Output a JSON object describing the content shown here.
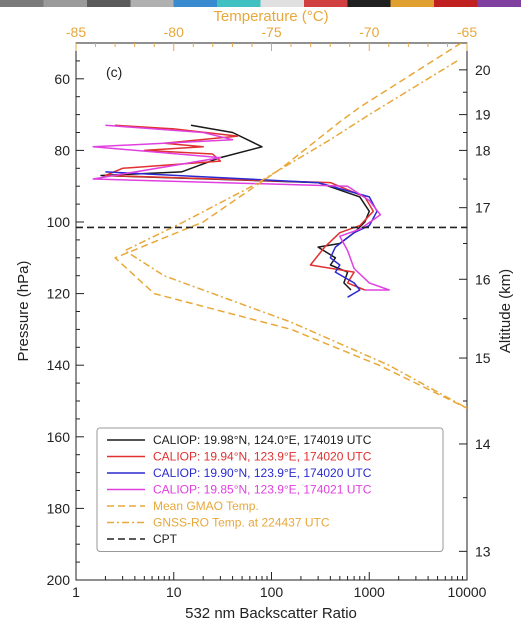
{
  "chart_data": {
    "type": "line",
    "panel_label": "(c)",
    "xlabel": "532 nm Backscatter Ratio",
    "ylabel": "Pressure (hPa)",
    "top_xlabel": "Temperature (°C)",
    "right_ylabel": "Altitude (km)",
    "x_scale": "log",
    "xlim": [
      1,
      10000
    ],
    "x_ticks": [
      "1",
      "10",
      "100",
      "1000",
      "10000"
    ],
    "ylim": [
      50,
      200
    ],
    "y_ticks": [
      "60",
      "80",
      "100",
      "120",
      "140",
      "160",
      "180",
      "200"
    ],
    "top_xlim": [
      -85,
      -65
    ],
    "top_ticks": [
      "-85",
      "-80",
      "-75",
      "-70",
      "-65"
    ],
    "right_ticks": [
      {
        "label": "20",
        "pressure": 57.5
      },
      {
        "label": "19",
        "pressure": 70
      },
      {
        "label": "18",
        "pressure": 80
      },
      {
        "label": "17",
        "pressure": 96
      },
      {
        "label": "16",
        "pressure": 116
      },
      {
        "label": "15",
        "pressure": 138
      },
      {
        "label": "14",
        "pressure": 162
      },
      {
        "label": "13",
        "pressure": 192
      }
    ],
    "legend_position": "bottom-left",
    "series": [
      {
        "name": "CALIOP: 19.98°N, 124.0°E, 174019 UTC",
        "axis": "bottom",
        "color": "#1a1a1a",
        "dash": "solid",
        "points": [
          [
            15,
            73
          ],
          [
            40,
            75
          ],
          [
            80,
            79
          ],
          [
            30,
            82
          ],
          [
            12,
            86
          ],
          [
            1.8,
            87
          ],
          [
            300,
            89
          ],
          [
            800,
            93
          ],
          [
            1000,
            97
          ],
          [
            900,
            100
          ],
          [
            700,
            103
          ],
          [
            500,
            106
          ],
          [
            300,
            107
          ],
          [
            450,
            110
          ],
          [
            400,
            112
          ],
          [
            600,
            114
          ],
          [
            550,
            117
          ],
          [
            650,
            119
          ]
        ]
      },
      {
        "name": "CALIOP: 19.94°N, 123.9°E, 174020 UTC",
        "axis": "bottom",
        "color": "#e03030",
        "dash": "solid",
        "points": [
          [
            2.5,
            73
          ],
          [
            10,
            74
          ],
          [
            45,
            76
          ],
          [
            8,
            78
          ],
          [
            20,
            79
          ],
          [
            5,
            80
          ],
          [
            25,
            81
          ],
          [
            30,
            83
          ],
          [
            3,
            85
          ],
          [
            2,
            87
          ],
          [
            400,
            89
          ],
          [
            900,
            93
          ],
          [
            1100,
            97
          ],
          [
            800,
            101
          ],
          [
            500,
            103
          ],
          [
            350,
            107
          ],
          [
            250,
            112
          ],
          [
            700,
            114
          ],
          [
            600,
            117
          ],
          [
            900,
            119
          ]
        ]
      },
      {
        "name": "CALIOP: 19.90°N, 123.9°E, 174020 UTC",
        "axis": "bottom",
        "color": "#2a2ad0",
        "dash": "solid",
        "points": [
          [
            2,
            86
          ],
          [
            300,
            89
          ],
          [
            1000,
            93
          ],
          [
            1200,
            97
          ],
          [
            1000,
            101
          ],
          [
            700,
            103
          ],
          [
            450,
            107
          ],
          [
            400,
            110
          ],
          [
            500,
            112
          ],
          [
            450,
            114
          ],
          [
            700,
            117
          ],
          [
            800,
            119
          ],
          [
            600,
            121
          ]
        ]
      },
      {
        "name": "CALIOP: 19.85°N, 123.9°E, 174021 UTC",
        "axis": "bottom",
        "color": "#e040e0",
        "dash": "solid",
        "points": [
          [
            2,
            73
          ],
          [
            20,
            75
          ],
          [
            40,
            77
          ],
          [
            1.5,
            79
          ],
          [
            30,
            82
          ],
          [
            1.5,
            88
          ],
          [
            600,
            90
          ],
          [
            1000,
            94
          ],
          [
            1300,
            98
          ],
          [
            800,
            102
          ],
          [
            500,
            104
          ],
          [
            600,
            108
          ],
          [
            700,
            113
          ],
          [
            1000,
            117
          ],
          [
            1600,
            119
          ],
          [
            900,
            119
          ]
        ]
      },
      {
        "name": "Mean GMAO Temp.",
        "axis": "top",
        "color": "#e8a83a",
        "dash": "dashed",
        "points": [
          [
            -65.3,
            50
          ],
          [
            -70.5,
            68
          ],
          [
            -71.5,
            72
          ],
          [
            -74.5,
            85
          ],
          [
            -78.5,
            100
          ],
          [
            -83,
            110
          ],
          [
            -81,
            120
          ],
          [
            -74,
            130
          ],
          [
            -69.5,
            140
          ],
          [
            -65,
            152
          ]
        ]
      },
      {
        "name": "GNSS-RO Temp. at 224437 UTC",
        "axis": "top",
        "color": "#e8a83a",
        "dash": "dashdot",
        "points": [
          [
            -65.5,
            55
          ],
          [
            -70,
            70
          ],
          [
            -72,
            77
          ],
          [
            -76,
            90
          ],
          [
            -79.5,
            100
          ],
          [
            -82.5,
            108
          ],
          [
            -80.5,
            115
          ],
          [
            -74,
            128
          ],
          [
            -69,
            140
          ],
          [
            -65,
            152
          ]
        ]
      },
      {
        "name": "CPT",
        "axis": "bottom",
        "color": "#222222",
        "dash": "dashed",
        "points": [
          [
            1,
            101.5
          ],
          [
            10000,
            101.5
          ]
        ]
      }
    ]
  }
}
